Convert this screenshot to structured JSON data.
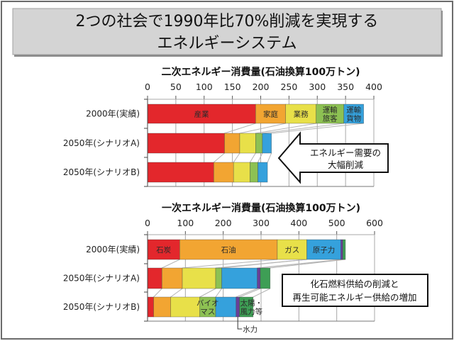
{
  "title": {
    "line1": "2つの社会で1990年比70%削減を実現する",
    "line2": "エネルギーシステム"
  },
  "colors": {
    "title_box": "#d4d4d4",
    "border": "#6b6b6b",
    "grid": "#a8a8a8",
    "connector": "#b5b5b5"
  },
  "chart_data": [
    {
      "type": "bar",
      "orientation": "horizontal",
      "stacked": true,
      "title": "二次エネルギー消費量(石油換算100万トン)",
      "categories": [
        "2000年(実績)",
        "2050年(シナリオA)",
        "2050年(シナリオB)"
      ],
      "xlim": [
        0,
        400
      ],
      "xticks": [
        0,
        50,
        100,
        150,
        200,
        250,
        300,
        350,
        400
      ],
      "grid": true,
      "series": [
        {
          "label_lines": [
            "産業"
          ],
          "values": [
            191,
            136,
            117
          ],
          "color": "#e3272c",
          "label_on": 0,
          "label_style": "inside"
        },
        {
          "label_lines": [
            "家庭"
          ],
          "values": [
            53,
            27,
            35
          ],
          "color": "#f2a532",
          "label_on": 0,
          "label_style": "inside"
        },
        {
          "label_lines": [
            "業務"
          ],
          "values": [
            54,
            28,
            29
          ],
          "color": "#e8e049",
          "label_on": 0,
          "label_style": "inside"
        },
        {
          "label_lines": [
            "運輸",
            "旅客"
          ],
          "values": [
            49,
            12,
            14
          ],
          "color": "#8dc153",
          "label_on": 0,
          "label_style": "inside"
        },
        {
          "label_lines": [
            "運輸",
            "貨物"
          ],
          "values": [
            35,
            16,
            17
          ],
          "color": "#35a1dc",
          "label_on": 0,
          "label_style": "inside"
        }
      ],
      "annotation": {
        "shape": "left-arrow",
        "lines": [
          "エネルギー需要の",
          "大幅削減"
        ]
      }
    },
    {
      "type": "bar",
      "orientation": "horizontal",
      "stacked": true,
      "title": "一次エネルギー消費量(石油換算100万トン)",
      "categories": [
        "2000年(実績)",
        "2050年(シナリオA)",
        "2050年(シナリオB)"
      ],
      "xlim": [
        0,
        600
      ],
      "xticks": [
        0,
        100,
        200,
        300,
        400,
        500,
        600
      ],
      "grid": true,
      "series": [
        {
          "label_lines": [
            "石炭"
          ],
          "values": [
            85,
            38,
            16
          ],
          "color": "#e3272c",
          "label_on": 0,
          "label_style": "inside"
        },
        {
          "label_lines": [
            "石油"
          ],
          "values": [
            258,
            54,
            45
          ],
          "color": "#f2a532",
          "label_on": 0,
          "label_style": "inside"
        },
        {
          "label_lines": [
            "ガス"
          ],
          "values": [
            78,
            88,
            77
          ],
          "color": "#e8e049",
          "label_on": 0,
          "label_style": "inside"
        },
        {
          "label_lines": [
            "バイオ",
            "マス"
          ],
          "values": [
            0,
            16,
            42
          ],
          "color": "#8dc153",
          "label_on": 2,
          "label_style": "inside"
        },
        {
          "label_lines": [
            "原子力"
          ],
          "values": [
            90,
            94,
            54
          ],
          "color": "#35a1dc",
          "label_on": 0,
          "label_style": "inside"
        },
        {
          "label_lines": [
            "水力"
          ],
          "values": [
            5,
            8,
            9
          ],
          "color": "#6a3f98",
          "label_on": 2,
          "label_style": "callout"
        },
        {
          "label_lines": [
            "太陽・",
            "風力等"
          ],
          "values": [
            7,
            26,
            36
          ],
          "color": "#3e9e55",
          "label_on": 2,
          "label_style": "inside-start"
        }
      ],
      "annotation": {
        "shape": "box",
        "lines": [
          "化石燃料供給の削減と",
          "再生可能エネルギー供給の増加"
        ]
      }
    }
  ]
}
